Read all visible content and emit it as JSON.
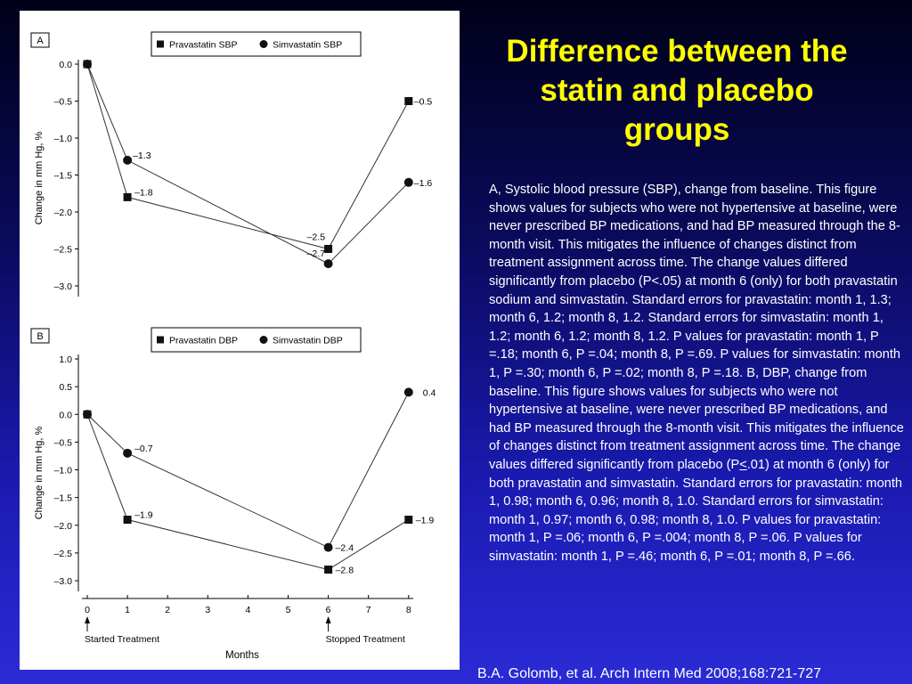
{
  "slide": {
    "title": "Difference between the statin and placebo groups",
    "caption_before_le": "A, Systolic blood pressure (SBP), change from baseline. This figure shows values for subjects who were not hypertensive at baseline, were never prescribed BP medications, and had BP measured through the 8-month visit. This mitigates the influence of changes distinct from treatment assignment across time. The change values differed significantly from placebo (P<.05) at month 6 (only) for both pravastatin sodium and simvastatin. Standard errors for pravastatin: month 1, 1.3; month 6, 1.2; month 8, 1.2. Standard errors for simvastatin: month 1, 1.2; month 6, 1.2; month 8, 1.2. P values for pravastatin: month 1, P =.18; month 6, P =.04; month 8, P =.69. P values for simvastatin: month 1, P =.30; month 6, P =.02; month 8, P =.18. B, DBP, change from baseline. This figure shows values for subjects who were not hypertensive at baseline, were never prescribed BP medications, and had BP measured through the 8-month visit. This mitigates the influence of changes distinct from treatment assignment across time. The change values differed significantly from placebo (P",
    "caption_le_symbol": "<",
    "caption_after_le": ".01) at month 6 (only) for both pravastatin and simvastatin. Standard errors for pravastatin: month 1, 0.98; month 6, 0.96; month 8, 1.0. Standard errors for simvastatin: month 1, 0.97; month 6, 0.98; month 8, 1.0. P values for pravastatin: month 1, P =.06; month 6, P =.004; month 8, P =.06. P values for simvastatin: month 1, P =.46; month 6, P =.01; month 8, P =.66.",
    "citation": "B.A. Golomb, et al. Arch Intern Med 2008;168:721-727",
    "title_color": "#ffff00"
  },
  "figure_text": {
    "xlabel": "Months",
    "start_annotation": "Started Treatment",
    "stop_annotation": "Stopped Treatment",
    "start_month": 0,
    "stop_month": 6
  },
  "chart_data": [
    {
      "type": "line",
      "panel": "A",
      "ylabel": "Change in mm Hg, %",
      "ylim": [
        -3.0,
        0.0
      ],
      "yticks": [
        0.0,
        -0.5,
        -1.0,
        -1.5,
        -2.0,
        -2.5,
        -3.0
      ],
      "ytick_labels": [
        "0.0",
        "–0.5",
        "–1.0",
        "–1.5",
        "–2.0",
        "–2.5",
        "–3.0"
      ],
      "xlim": [
        0,
        8
      ],
      "legend_placement": "top",
      "grid": false,
      "series": [
        {
          "name": "Pravastatin SBP",
          "marker": "square",
          "x": [
            0,
            1,
            6,
            8
          ],
          "y": [
            0.0,
            -1.8,
            -2.5,
            -0.5
          ],
          "labels": [
            "",
            "–1.8",
            "–2.5",
            "–0.5"
          ]
        },
        {
          "name": "Simvastatin SBP",
          "marker": "circle",
          "x": [
            0,
            1,
            6,
            8
          ],
          "y": [
            0.0,
            -1.3,
            -2.7,
            -1.6
          ],
          "labels": [
            "",
            "–1.3",
            "–2.7",
            "–1.6"
          ]
        }
      ]
    },
    {
      "type": "line",
      "panel": "B",
      "ylabel": "Change in mm Hg, %",
      "ylim": [
        -3.0,
        1.0
      ],
      "yticks": [
        1.0,
        0.5,
        0.0,
        -0.5,
        -1.0,
        -1.5,
        -2.0,
        -2.5,
        -3.0
      ],
      "ytick_labels": [
        "1.0",
        "0.5",
        "0.0",
        "–0.5",
        "–1.0",
        "–1.5",
        "–2.0",
        "–2.5",
        "–3.0"
      ],
      "xlim": [
        0,
        8
      ],
      "xticks": [
        0,
        1,
        2,
        3,
        4,
        5,
        6,
        7,
        8
      ],
      "xtick_labels": [
        "0",
        "1",
        "2",
        "3",
        "4",
        "5",
        "6",
        "7",
        "8"
      ],
      "legend_placement": "top",
      "grid": false,
      "series": [
        {
          "name": "Pravastatin DBP",
          "marker": "square",
          "x": [
            0,
            1,
            6,
            8
          ],
          "y": [
            0.0,
            -1.9,
            -2.8,
            -1.9
          ],
          "labels": [
            "",
            "–1.9",
            "–2.8",
            "–1.9"
          ]
        },
        {
          "name": "Simvastatin DBP",
          "marker": "circle",
          "x": [
            0,
            1,
            6,
            8
          ],
          "y": [
            0.0,
            -0.7,
            -2.4,
            0.4
          ],
          "labels": [
            "",
            "–0.7",
            "–2.4",
            "0.4"
          ]
        }
      ]
    }
  ]
}
